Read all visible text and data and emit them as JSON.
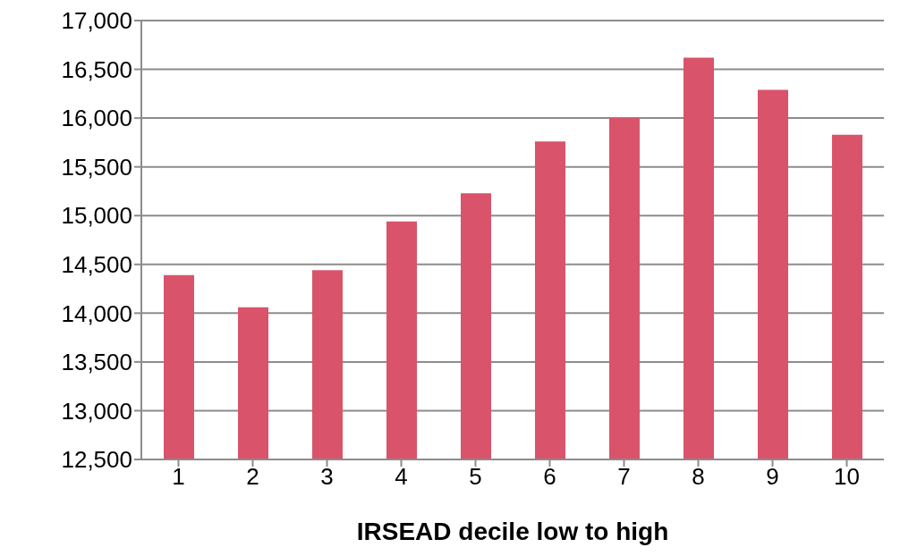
{
  "chart_data": {
    "type": "bar",
    "xlabel": "IRSEAD decile low to high",
    "categories": [
      "1",
      "2",
      "3",
      "4",
      "5",
      "6",
      "7",
      "8",
      "9",
      "10"
    ],
    "values": [
      14390,
      14060,
      14440,
      14940,
      15230,
      15760,
      16000,
      16620,
      16290,
      15830
    ],
    "color": "#d9536b",
    "ylim": [
      12500,
      17000
    ],
    "yticks": [
      {
        "value": 12500,
        "label": "12,500"
      },
      {
        "value": 13000,
        "label": "13,000"
      },
      {
        "value": 13500,
        "label": "13,500"
      },
      {
        "value": 14000,
        "label": "14,000"
      },
      {
        "value": 14500,
        "label": "14,500"
      },
      {
        "value": 15000,
        "label": "15,000"
      },
      {
        "value": 15500,
        "label": "15,500"
      },
      {
        "value": 16000,
        "label": "16,000"
      },
      {
        "value": 16500,
        "label": "16,500"
      },
      {
        "value": 17000,
        "label": "17,000"
      }
    ],
    "grid": "y",
    "legend": false
  }
}
